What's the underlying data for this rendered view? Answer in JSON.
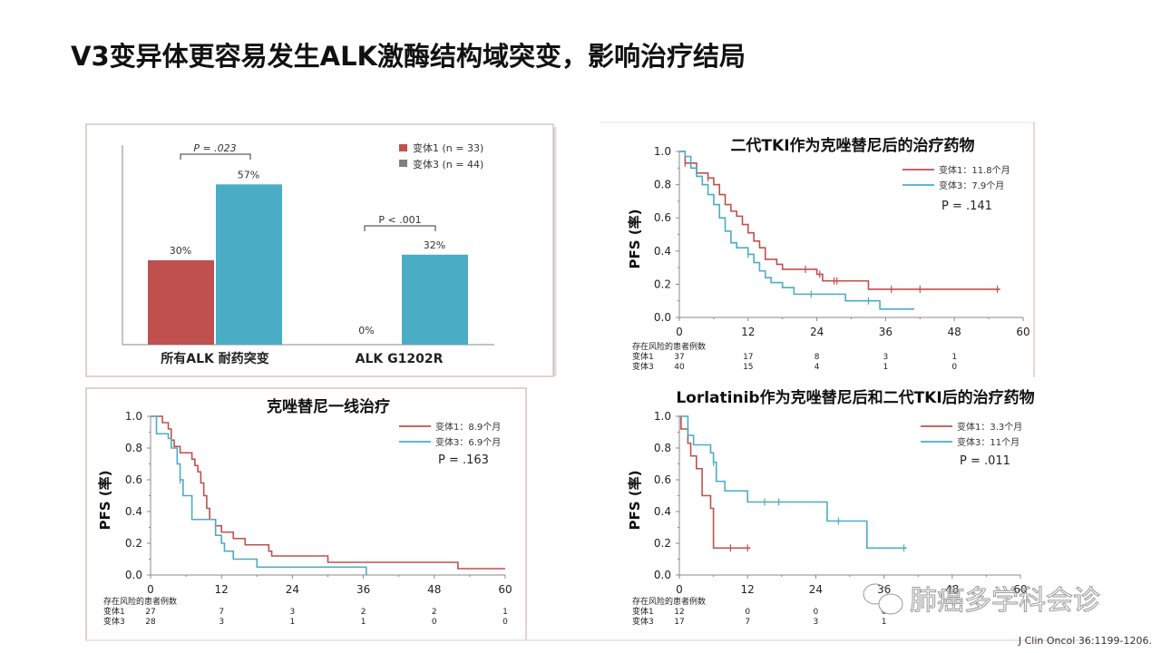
{
  "slide": {
    "title": "V3变异体更容易发生ALK激酶结构域突变，影响治疗结局",
    "citation": "J Clin Oncol 36:1199-1206.",
    "watermark": "肺癌多学科会诊"
  },
  "colors": {
    "variant1": "#c0504d",
    "variant3": "#4bacc6",
    "legend_v3_swatch": "#7f7f7f"
  },
  "risk_header": "存在风险的患者例数",
  "chart_data": [
    {
      "type": "bar",
      "title": "",
      "categories": [
        "所有ALK 耐药突变",
        "ALK G1202R"
      ],
      "series": [
        {
          "name": "变体1 (n = 33)",
          "values": [
            30,
            0
          ],
          "labels": [
            "30%",
            "0%"
          ]
        },
        {
          "name": "变体3 (n = 44)",
          "values": [
            57,
            32
          ],
          "labels": [
            "57%",
            "32%"
          ]
        }
      ],
      "annotations": [
        "P = .023",
        "P < .001"
      ],
      "ylim": [
        0,
        70
      ]
    },
    {
      "type": "line",
      "title": "二代TKI作为克唑替尼后的治疗药物",
      "ylabel": "PFS (率)",
      "xlim": [
        0,
        60
      ],
      "ylim": [
        0,
        1
      ],
      "xticks": [
        "0",
        "12",
        "24",
        "36",
        "48",
        "60"
      ],
      "yticks": [
        "0.0",
        "0.2",
        "0.4",
        "0.6",
        "0.8",
        "1.0"
      ],
      "legend": [
        "变体1：11.8个月",
        "变体3：7.9个月"
      ],
      "pvalue": "P = .141",
      "series": [
        {
          "name": "变体1",
          "steps": [
            [
              0,
              1
            ],
            [
              1,
              0.93
            ],
            [
              3,
              0.87
            ],
            [
              5,
              0.84
            ],
            [
              6,
              0.8
            ],
            [
              7,
              0.74
            ],
            [
              8,
              0.68
            ],
            [
              9,
              0.64
            ],
            [
              10,
              0.61
            ],
            [
              11,
              0.56
            ],
            [
              12,
              0.51
            ],
            [
              13,
              0.46
            ],
            [
              14,
              0.42
            ],
            [
              15,
              0.35
            ],
            [
              17,
              0.32
            ],
            [
              18,
              0.29
            ],
            [
              24,
              0.26
            ],
            [
              25,
              0.22
            ],
            [
              33,
              0.17
            ],
            [
              56,
              0.17
            ]
          ],
          "censors": [
            1,
            5,
            22,
            24.5,
            27,
            27.5,
            37,
            42,
            55.5
          ]
        },
        {
          "name": "变体3",
          "steps": [
            [
              0,
              1
            ],
            [
              1,
              0.97
            ],
            [
              2,
              0.9
            ],
            [
              3,
              0.85
            ],
            [
              4,
              0.8
            ],
            [
              5,
              0.74
            ],
            [
              6,
              0.68
            ],
            [
              7,
              0.6
            ],
            [
              8,
              0.52
            ],
            [
              9,
              0.45
            ],
            [
              10,
              0.42
            ],
            [
              12,
              0.38
            ],
            [
              13,
              0.33
            ],
            [
              14,
              0.28
            ],
            [
              15,
              0.24
            ],
            [
              16,
              0.21
            ],
            [
              18,
              0.18
            ],
            [
              20,
              0.14
            ],
            [
              29,
              0.1
            ],
            [
              35,
              0.05
            ],
            [
              41,
              0.05
            ]
          ],
          "censors": [
            12,
            23,
            33
          ]
        }
      ],
      "risk_table": {
        "rows": [
          {
            "label": "变体1",
            "values": [
              "37",
              "17",
              "8",
              "3",
              "1"
            ]
          },
          {
            "label": "变体3",
            "values": [
              "40",
              "15",
              "4",
              "1",
              "0"
            ]
          }
        ]
      }
    },
    {
      "type": "line",
      "title": "克唑替尼一线治疗",
      "ylabel": "PFS (率)",
      "xlim": [
        0,
        60
      ],
      "ylim": [
        0,
        1
      ],
      "xticks": [
        "0",
        "12",
        "24",
        "36",
        "48",
        "60"
      ],
      "yticks": [
        "0.0",
        "0.2",
        "0.4",
        "0.6",
        "0.8",
        "1.0"
      ],
      "legend": [
        "变体1：8.9个月",
        "变体3：6.9个月"
      ],
      "pvalue": "P = .163",
      "series": [
        {
          "name": "变体1",
          "steps": [
            [
              0,
              1
            ],
            [
              2,
              0.96
            ],
            [
              3,
              0.92
            ],
            [
              3.5,
              0.85
            ],
            [
              4,
              0.81
            ],
            [
              5,
              0.77
            ],
            [
              7,
              0.73
            ],
            [
              7.5,
              0.69
            ],
            [
              8,
              0.65
            ],
            [
              8.5,
              0.58
            ],
            [
              9,
              0.5
            ],
            [
              9.5,
              0.42
            ],
            [
              10,
              0.35
            ],
            [
              11,
              0.31
            ],
            [
              12,
              0.27
            ],
            [
              14,
              0.23
            ],
            [
              16,
              0.19
            ],
            [
              20,
              0.15
            ],
            [
              20.5,
              0.12
            ],
            [
              30,
              0.08
            ],
            [
              52,
              0.04
            ],
            [
              60,
              0.04
            ]
          ],
          "censors": []
        },
        {
          "name": "变体3",
          "steps": [
            [
              0,
              1
            ],
            [
              1,
              0.89
            ],
            [
              3,
              0.86
            ],
            [
              3.5,
              0.8
            ],
            [
              4.5,
              0.7
            ],
            [
              5,
              0.6
            ],
            [
              5.5,
              0.5
            ],
            [
              7,
              0.35
            ],
            [
              10,
              0.35
            ],
            [
              11,
              0.25
            ],
            [
              12,
              0.2
            ],
            [
              12.5,
              0.15
            ],
            [
              14,
              0.1
            ],
            [
              18,
              0.05
            ],
            [
              36.5,
              0.05
            ],
            [
              36.5,
              0
            ]
          ],
          "censors": [
            5
          ]
        }
      ],
      "risk_table": {
        "rows": [
          {
            "label": "变体1",
            "values": [
              "27",
              "7",
              "3",
              "2",
              "2",
              "1"
            ]
          },
          {
            "label": "变体3",
            "values": [
              "28",
              "3",
              "1",
              "1",
              "0",
              "0"
            ]
          }
        ]
      }
    },
    {
      "type": "line",
      "title": "Lorlatinib作为克唑替尼后和二代TKI后的治疗药物",
      "ylabel": "PFS (率)",
      "xlim": [
        0,
        60
      ],
      "ylim": [
        0,
        1
      ],
      "xticks": [
        "0",
        "12",
        "24",
        "36",
        "48",
        "60"
      ],
      "yticks": [
        "0.0",
        "0.2",
        "0.4",
        "0.6",
        "0.8",
        "1.0"
      ],
      "legend": [
        "变体1：3.3个月",
        "变体3：11个月"
      ],
      "pvalue": "P = .011",
      "series": [
        {
          "name": "变体1",
          "steps": [
            [
              0,
              1
            ],
            [
              0.3,
              0.92
            ],
            [
              1.5,
              0.83
            ],
            [
              2,
              0.75
            ],
            [
              3,
              0.67
            ],
            [
              4,
              0.5
            ],
            [
              5.5,
              0.42
            ],
            [
              6,
              0.17
            ],
            [
              12.5,
              0.17
            ]
          ],
          "censors": [
            9,
            12
          ]
        },
        {
          "name": "变体3",
          "steps": [
            [
              0,
              1
            ],
            [
              1.5,
              0.88
            ],
            [
              2.5,
              0.82
            ],
            [
              5.5,
              0.77
            ],
            [
              6,
              0.71
            ],
            [
              6.5,
              0.59
            ],
            [
              8,
              0.53
            ],
            [
              12,
              0.46
            ],
            [
              26,
              0.34
            ],
            [
              33,
              0.17
            ],
            [
              40,
              0.17
            ]
          ],
          "censors": [
            6,
            15,
            17.5,
            28,
            39.5
          ]
        }
      ],
      "risk_table": {
        "rows": [
          {
            "label": "变体1",
            "values": [
              "12",
              "0",
              "0",
              "0"
            ]
          },
          {
            "label": "变体3",
            "values": [
              "17",
              "7",
              "3",
              "1"
            ]
          }
        ]
      }
    }
  ]
}
